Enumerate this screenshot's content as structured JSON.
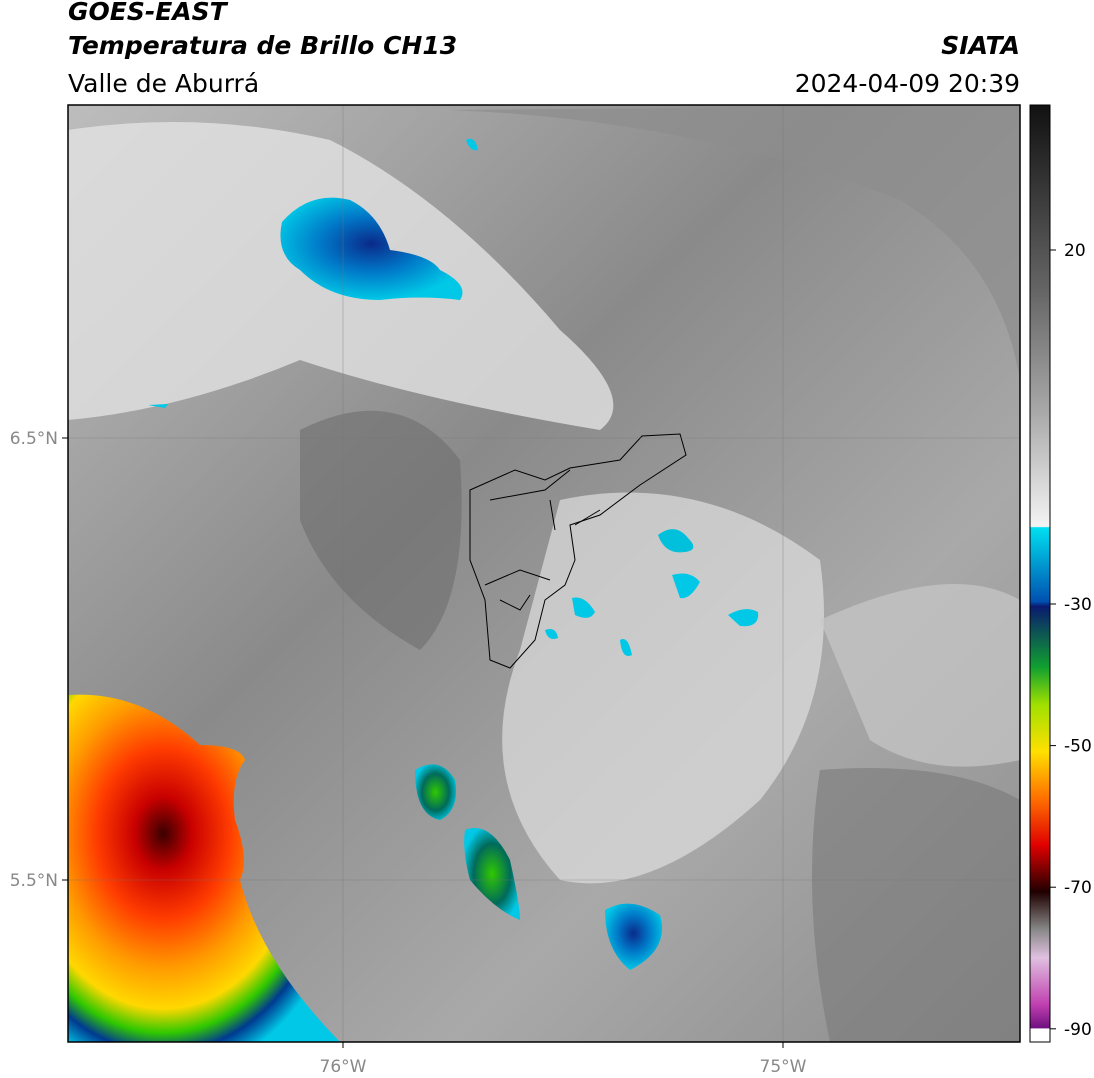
{
  "header": {
    "title": "GOES-EAST",
    "subtitle": "Temperatura de Brillo CH13",
    "region": "Valle de Aburrá",
    "source": "SIATA",
    "timestamp": "2024-04-09 20:39"
  },
  "map": {
    "lat_ticks": [
      {
        "value": 6.5,
        "label": "6.5°N"
      },
      {
        "value": 5.5,
        "label": "5.5°N"
      }
    ],
    "lon_ticks": [
      {
        "value": -76,
        "label": "76°W"
      },
      {
        "value": -75,
        "label": "75°W"
      }
    ]
  },
  "colorbar": {
    "ticks": [
      20,
      -30,
      -50,
      -70,
      -90
    ]
  }
}
